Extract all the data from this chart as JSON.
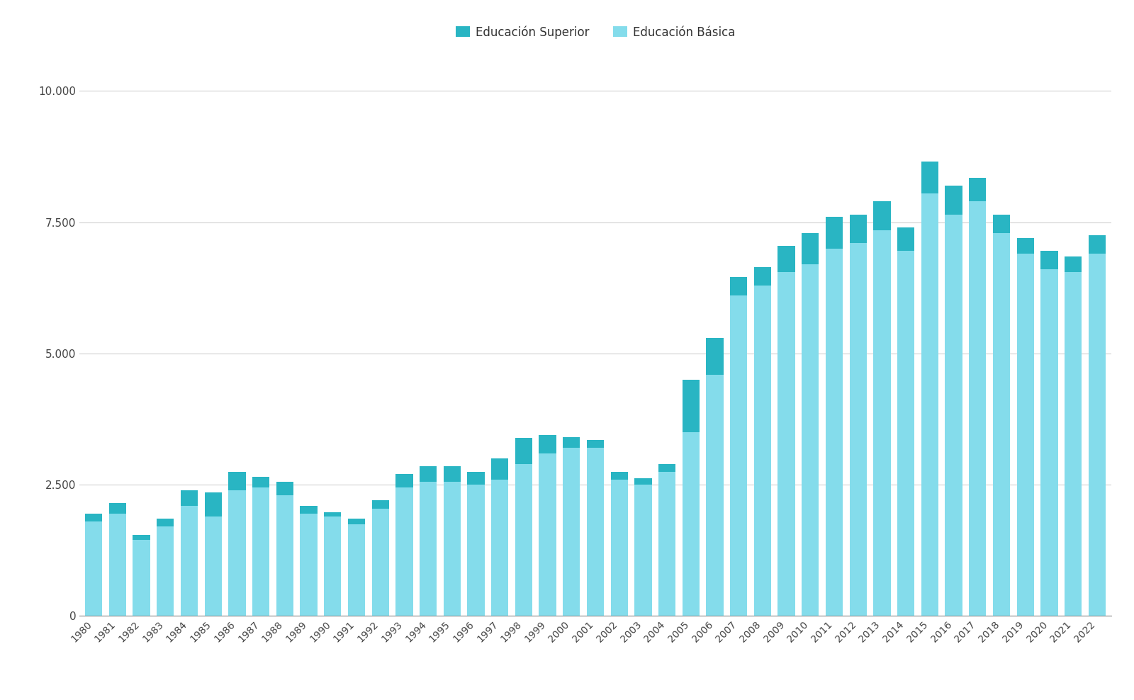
{
  "years": [
    1980,
    1981,
    1982,
    1983,
    1984,
    1985,
    1986,
    1987,
    1988,
    1989,
    1990,
    1991,
    1992,
    1993,
    1994,
    1995,
    1996,
    1997,
    1998,
    1999,
    2000,
    2001,
    2002,
    2003,
    2004,
    2005,
    2006,
    2007,
    2008,
    2009,
    2010,
    2011,
    2012,
    2013,
    2014,
    2015,
    2016,
    2017,
    2018,
    2019,
    2020,
    2021,
    2022
  ],
  "basica": [
    1800,
    1950,
    1450,
    1700,
    2100,
    1900,
    2400,
    2450,
    2300,
    1950,
    1900,
    1750,
    2050,
    2450,
    2550,
    2550,
    2500,
    2600,
    2900,
    3100,
    3200,
    3200,
    2600,
    2500,
    2750,
    3500,
    4600,
    6100,
    6300,
    6550,
    6700,
    7000,
    7100,
    7350,
    6950,
    8050,
    7650,
    7900,
    7300,
    6900,
    6600,
    6550,
    6900
  ],
  "superior": [
    150,
    200,
    100,
    150,
    300,
    450,
    350,
    200,
    250,
    150,
    80,
    100,
    150,
    250,
    300,
    300,
    250,
    400,
    500,
    350,
    200,
    150,
    150,
    120,
    150,
    1000,
    700,
    350,
    350,
    500,
    600,
    600,
    550,
    550,
    450,
    600,
    550,
    450,
    350,
    300,
    350,
    300,
    350
  ],
  "color_basica": "#84DCEB",
  "color_superior": "#29B5C3",
  "background_color": "#ffffff",
  "grid_color": "#d0d0d0",
  "legend_labels": [
    "Educación Superior",
    "Educación Básica"
  ],
  "yticks": [
    0,
    2500,
    5000,
    7500,
    10000
  ],
  "ylim": [
    0,
    10800
  ],
  "bar_width": 0.72
}
